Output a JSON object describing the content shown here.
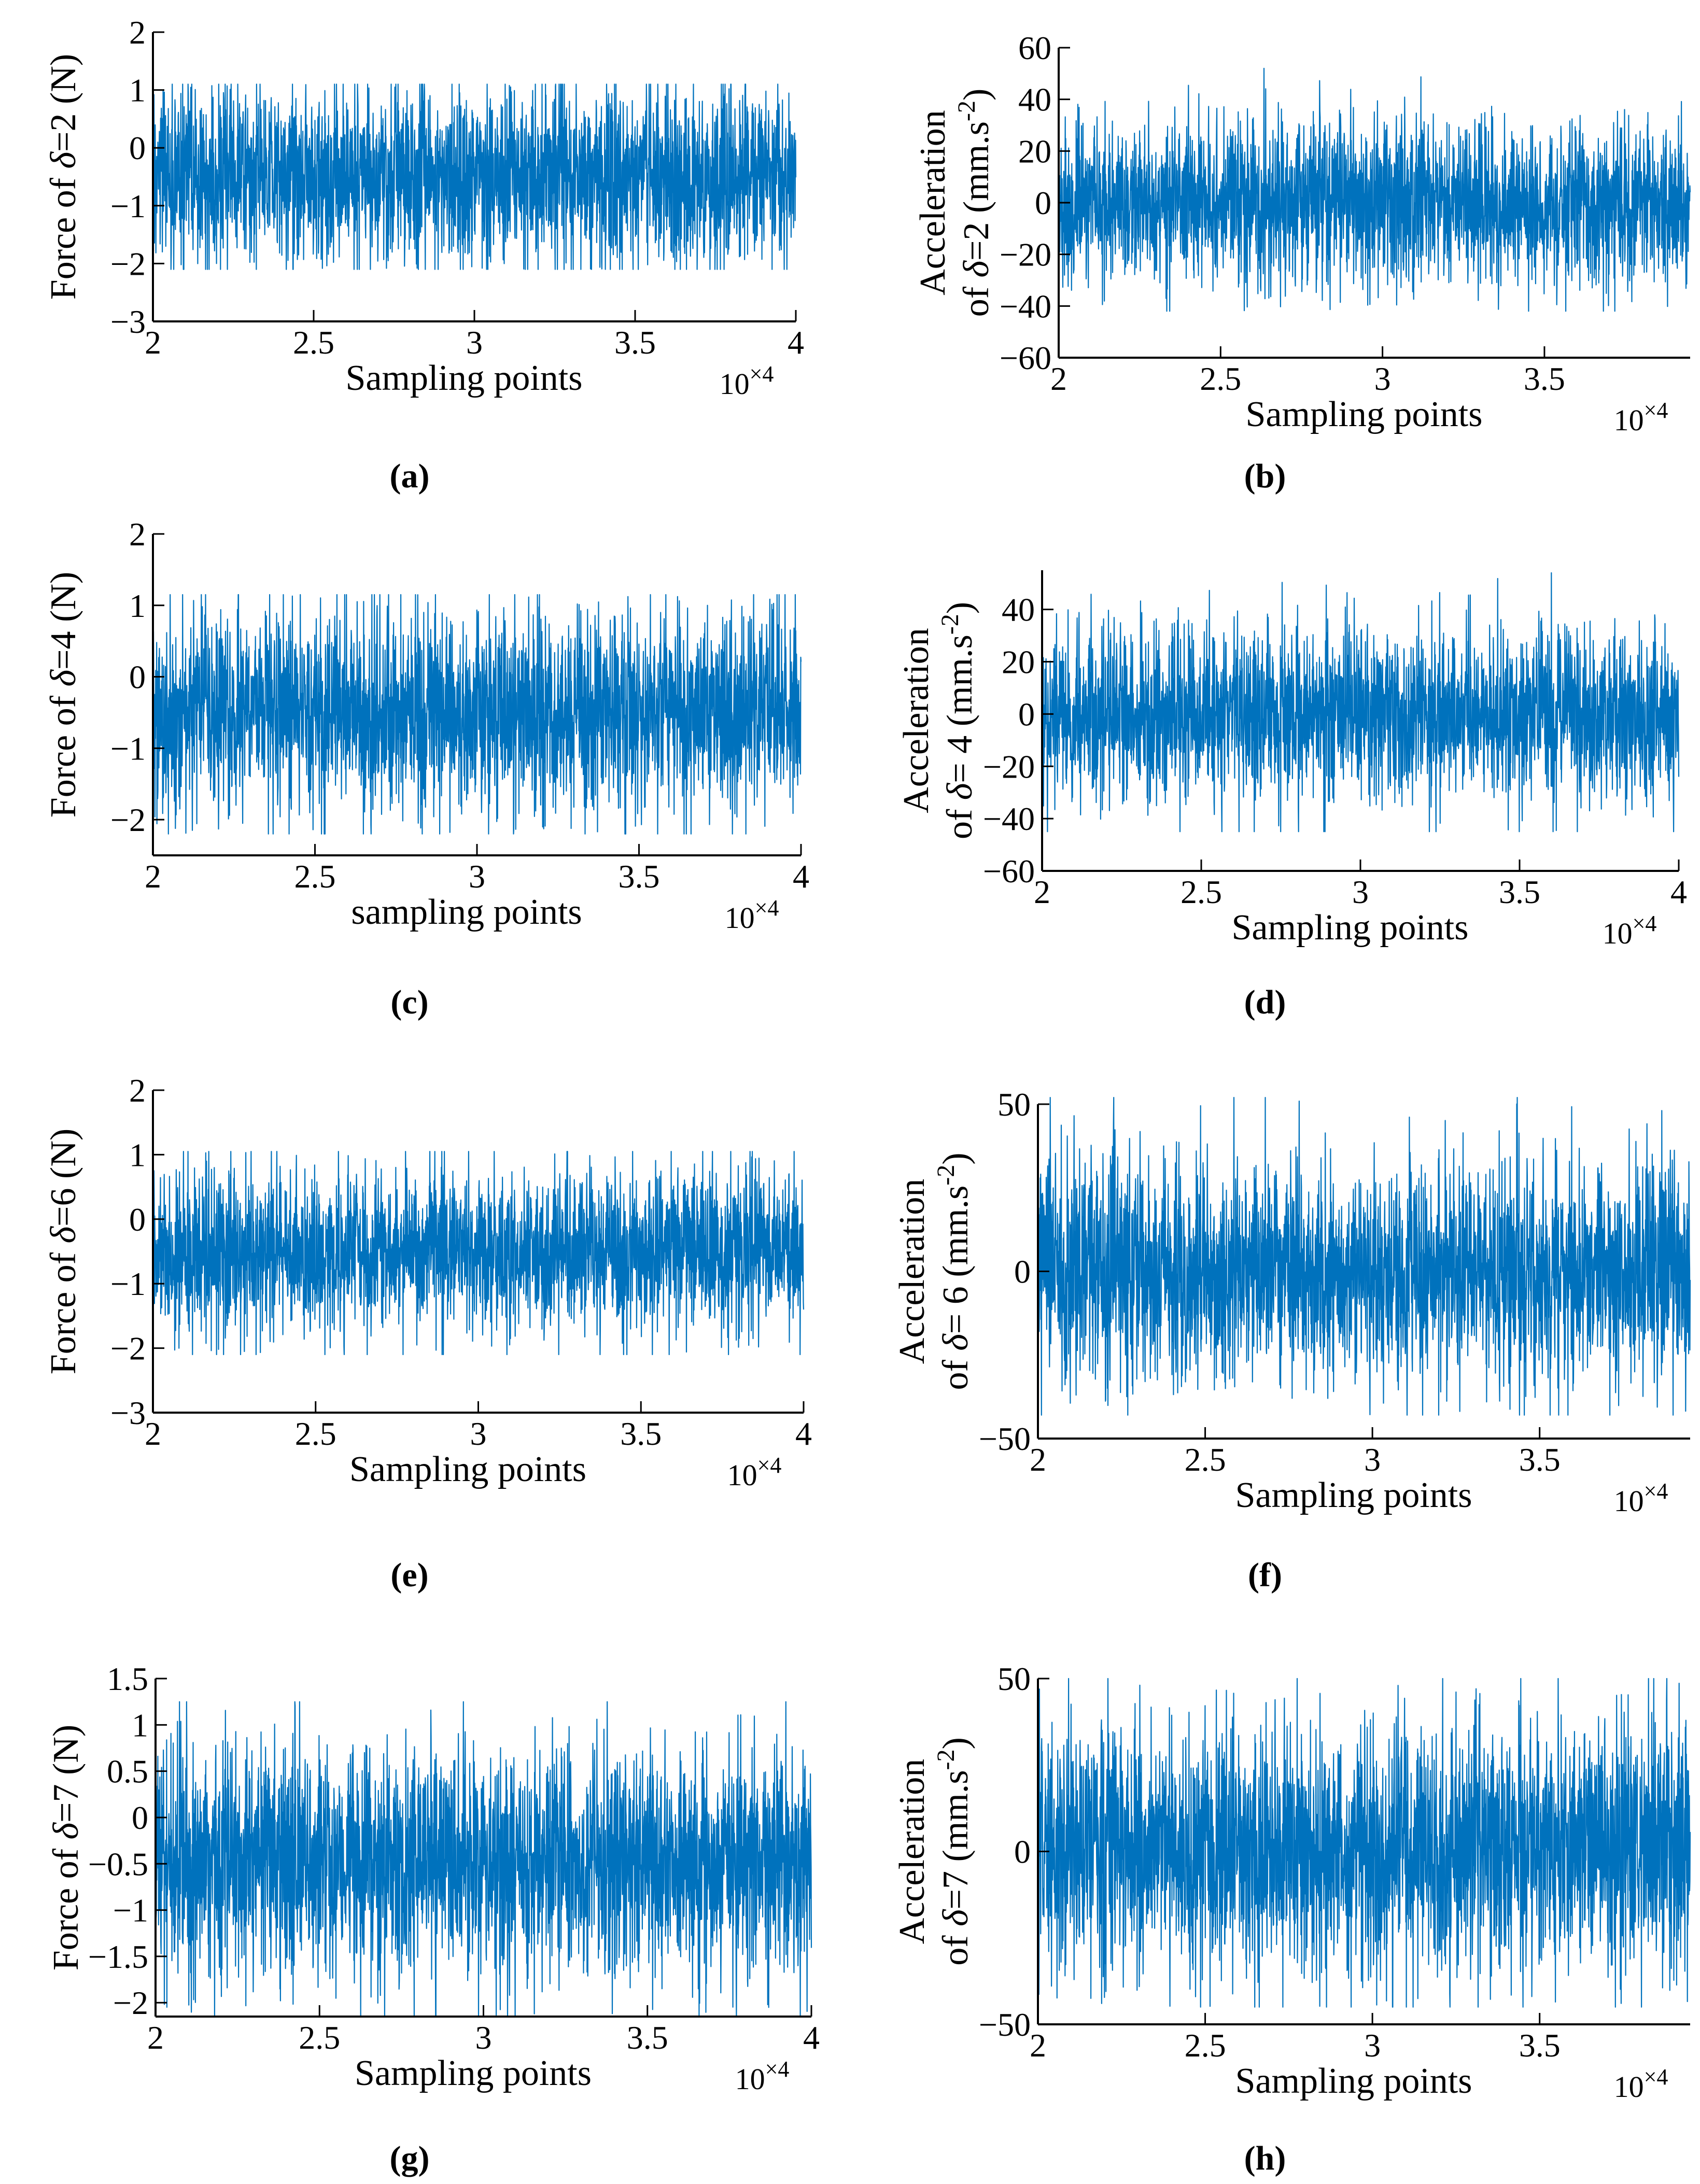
{
  "figure": {
    "line_color": "#0072BD"
  },
  "chart_data": [
    {
      "panel": "(a)",
      "type": "line",
      "ylabel": "Force of δ=2 (N)",
      "xlabel": "Sampling points",
      "x_exponent": "10×4",
      "xlim": [
        2,
        4
      ],
      "xticks": [
        "2",
        "2.5",
        "3",
        "3.5",
        "4"
      ],
      "ylim": [
        -3,
        2
      ],
      "yticks": [
        "2",
        "1",
        "0",
        "−1",
        "−2",
        "−3"
      ],
      "series": [
        {
          "name": "force",
          "mean": -0.5,
          "typical_band": [
            -1.5,
            0.5
          ],
          "min": -2.1,
          "max": 1.1
        }
      ]
    },
    {
      "panel": "(b)",
      "type": "line",
      "ylabel": "Acceleration of δ=2 (mm.s-2)",
      "xlabel": "Sampling points",
      "x_exponent": "10×4",
      "xlim": [
        2,
        3.95
      ],
      "xticks": [
        "2",
        "2.5",
        "3",
        "3.5"
      ],
      "ylim": [
        -60,
        60
      ],
      "yticks": [
        "60",
        "40",
        "20",
        "0",
        "−20",
        "−40",
        "−60"
      ],
      "series": [
        {
          "name": "acceleration",
          "mean": 0,
          "typical_band": [
            -20,
            20
          ],
          "min": -42,
          "max": 52
        }
      ]
    },
    {
      "panel": "(c)",
      "type": "line",
      "ylabel": "Force of δ=4 (N)",
      "xlabel": "sampling points",
      "x_exponent": "10×4",
      "xlim": [
        2,
        4
      ],
      "xticks": [
        "2",
        "2.5",
        "3",
        "3.5",
        "4"
      ],
      "ylim": [
        -2.5,
        2
      ],
      "yticks": [
        "2",
        "1",
        "0",
        "−1",
        "−2"
      ],
      "series": [
        {
          "name": "force",
          "mean": -0.5,
          "typical_band": [
            -1.4,
            0.4
          ],
          "min": -2.2,
          "max": 1.15
        }
      ]
    },
    {
      "panel": "(d)",
      "type": "line",
      "ylabel": "Acceleration of δ= 4 (mm.s-2)",
      "xlabel": "Sampling points",
      "x_exponent": "10×4",
      "xlim": [
        2,
        4
      ],
      "xticks": [
        "2",
        "2.5",
        "3",
        "3.5",
        "4"
      ],
      "ylim": [
        -60,
        55
      ],
      "yticks": [
        "40",
        "20",
        "0",
        "−20",
        "−40",
        "−60"
      ],
      "series": [
        {
          "name": "acceleration",
          "mean": 0,
          "typical_band": [
            -20,
            22
          ],
          "min": -45,
          "max": 54
        }
      ]
    },
    {
      "panel": "(e)",
      "type": "line",
      "ylabel": "Force of δ=6 (N)",
      "xlabel": "Sampling points",
      "x_exponent": "10×4",
      "xlim": [
        2,
        4
      ],
      "xticks": [
        "2",
        "2.5",
        "3",
        "3.5",
        "4"
      ],
      "ylim": [
        -3,
        2
      ],
      "yticks": [
        "2",
        "1",
        "0",
        "−1",
        "−2",
        "−3"
      ],
      "series": [
        {
          "name": "force",
          "mean": -0.5,
          "typical_band": [
            -1.3,
            0.3
          ],
          "min": -2.1,
          "max": 1.05
        }
      ]
    },
    {
      "panel": "(f)",
      "type": "line",
      "ylabel": "Acceleration of δ= 6 (mm.s-2)",
      "xlabel": "Sampling points",
      "x_exponent": "10×4",
      "xlim": [
        2,
        3.95
      ],
      "xticks": [
        "2",
        "2.5",
        "3",
        "3.5"
      ],
      "ylim": [
        -50,
        50
      ],
      "yticks": [
        "50",
        "0",
        "−50"
      ],
      "series": [
        {
          "name": "acceleration",
          "mean": 0,
          "typical_band": [
            -20,
            22
          ],
          "min": -43,
          "max": 52
        }
      ]
    },
    {
      "panel": "(g)",
      "type": "line",
      "ylabel": "Force of δ=7 (N)",
      "xlabel": "Sampling points",
      "x_exponent": "10×4",
      "xlim": [
        2,
        4
      ],
      "xticks": [
        "2",
        "2.5",
        "3",
        "3.5",
        "4"
      ],
      "ylim": [
        -2.15,
        1.5
      ],
      "yticks": [
        "1.5",
        "1",
        "0.5",
        "0",
        "−0.5",
        "−1",
        "−1.5",
        "−2"
      ],
      "series": [
        {
          "name": "force",
          "mean": -0.5,
          "typical_band": [
            -1.3,
            0.3
          ],
          "min": -2.15,
          "max": 1.25
        }
      ]
    },
    {
      "panel": "(h)",
      "type": "line",
      "ylabel": "Acceleration of δ=7 (mm.s-2)",
      "xlabel": "Sampling points",
      "x_exponent": "10×4",
      "xlim": [
        2,
        3.95
      ],
      "xticks": [
        "2",
        "2.5",
        "3",
        "3.5"
      ],
      "ylim": [
        -50,
        50
      ],
      "yticks": [
        "50",
        "0",
        "−50"
      ],
      "series": [
        {
          "name": "acceleration",
          "mean": 0,
          "typical_band": [
            -22,
            25
          ],
          "min": -45,
          "max": 50
        }
      ]
    }
  ]
}
